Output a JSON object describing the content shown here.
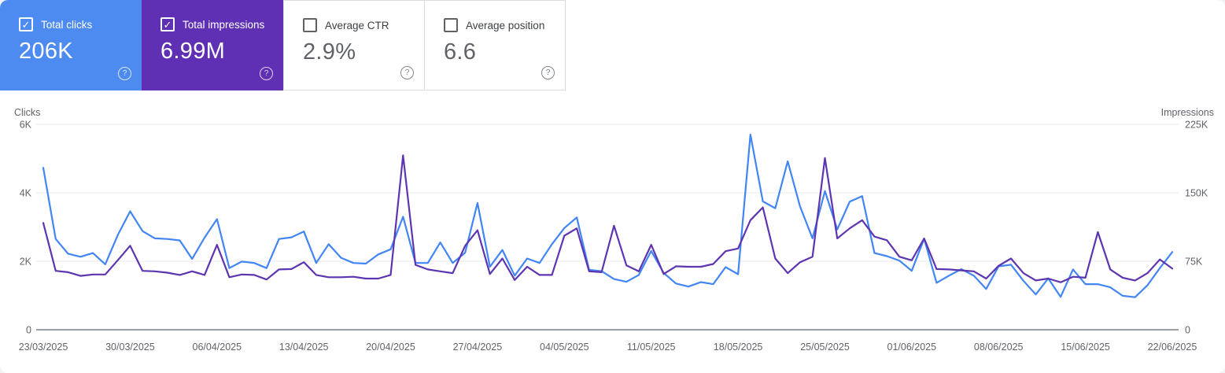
{
  "icons": {
    "check": "✓",
    "help": "?"
  },
  "colors": {
    "clicks_accent": "#4d8bf0",
    "impressions_accent": "#5f30b4",
    "clicks_line": "#4285f4",
    "impressions_line": "#5e35b1",
    "gridline": "#e8eaed",
    "axis_line": "#9aa0a6",
    "axis_text": "#5f6368",
    "card_border": "#dadce0"
  },
  "cards": [
    {
      "id": "total-clicks",
      "label": "Total clicks",
      "value": "206K",
      "selected": true,
      "bg": "#4d8bf0"
    },
    {
      "id": "total-impressions",
      "label": "Total impressions",
      "value": "6.99M",
      "selected": true,
      "bg": "#5f30b4"
    },
    {
      "id": "average-ctr",
      "label": "Average CTR",
      "value": "2.9%",
      "selected": false,
      "bg": "#ffffff"
    },
    {
      "id": "average-position",
      "label": "Average position",
      "value": "6.6",
      "selected": false,
      "bg": "#ffffff"
    }
  ],
  "chart_data": {
    "type": "line",
    "grid": true,
    "x": {
      "start_date": "23/03/2025",
      "end_date": "22/06/2025",
      "tick_every_days": 7,
      "tick_labels": [
        "23/03/2025",
        "30/03/2025",
        "06/04/2025",
        "13/04/2025",
        "20/04/2025",
        "27/04/2025",
        "04/05/2025",
        "11/05/2025",
        "18/05/2025",
        "25/05/2025",
        "01/06/2025",
        "08/06/2025",
        "15/06/2025",
        "22/06/2025"
      ]
    },
    "left_axis": {
      "title": "Clicks",
      "max": 6000,
      "tick_values": [
        0,
        2000,
        4000,
        6000
      ],
      "tick_labels": [
        "0",
        "2K",
        "4K",
        "6K"
      ]
    },
    "right_axis": {
      "title": "Impressions",
      "max": 225000,
      "tick_values": [
        0,
        75000,
        150000,
        225000
      ],
      "tick_labels": [
        "0",
        "75K",
        "150K",
        "225K"
      ]
    },
    "series": [
      {
        "name": "Total clicks",
        "axis": "left",
        "color": "#4285f4",
        "values": [
          4730,
          2650,
          2220,
          2130,
          2240,
          1910,
          2760,
          3460,
          2880,
          2670,
          2650,
          2610,
          2070,
          2690,
          3230,
          1800,
          1990,
          1950,
          1800,
          2650,
          2700,
          2870,
          1950,
          2500,
          2100,
          1950,
          1930,
          2200,
          2350,
          3300,
          1950,
          1950,
          2550,
          1950,
          2250,
          3700,
          1840,
          2330,
          1580,
          2080,
          1950,
          2500,
          2970,
          3280,
          1750,
          1710,
          1480,
          1400,
          1600,
          2300,
          1660,
          1350,
          1260,
          1390,
          1330,
          1830,
          1620,
          5700,
          3750,
          3550,
          4920,
          3600,
          2670,
          4050,
          2930,
          3740,
          3900,
          2240,
          2150,
          2020,
          1720,
          2660,
          1370,
          1580,
          1770,
          1580,
          1190,
          1850,
          1900,
          1430,
          1030,
          1500,
          960,
          1760,
          1330,
          1330,
          1240,
          990,
          950,
          1300,
          1800,
          2270
        ]
      },
      {
        "name": "Total impressions",
        "axis": "right",
        "color": "#5e35b1",
        "values": [
          117000,
          64500,
          63000,
          59000,
          60500,
          60500,
          76000,
          92000,
          64500,
          64000,
          62500,
          60000,
          64000,
          60000,
          93000,
          57500,
          60500,
          60000,
          55000,
          66000,
          66500,
          74000,
          60000,
          57500,
          57500,
          58000,
          56000,
          56000,
          60000,
          191000,
          71000,
          66000,
          64000,
          62000,
          92000,
          109000,
          61000,
          78000,
          54500,
          69000,
          60000,
          60000,
          103000,
          111000,
          64000,
          63000,
          114000,
          70500,
          64000,
          93000,
          61000,
          69500,
          69000,
          69000,
          72000,
          86000,
          89000,
          120000,
          134000,
          78000,
          62000,
          74000,
          80000,
          188000,
          100000,
          111000,
          120000,
          102000,
          98000,
          80000,
          76000,
          100000,
          66500,
          66000,
          65000,
          64000,
          56000,
          70000,
          78000,
          62000,
          54000,
          56000,
          52000,
          58000,
          57000,
          107000,
          66000,
          57000,
          54000,
          62000,
          77000,
          67000
        ]
      }
    ]
  }
}
